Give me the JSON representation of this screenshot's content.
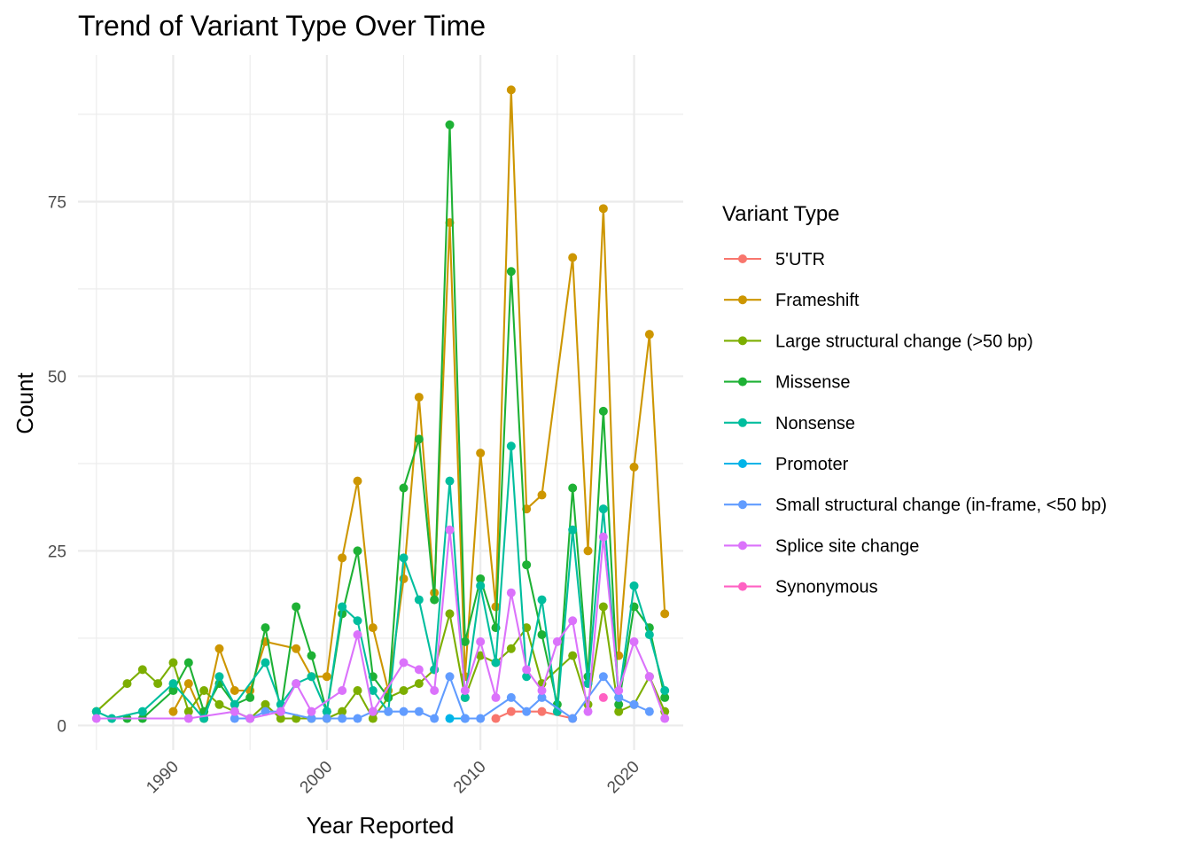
{
  "chart_data": {
    "type": "line",
    "title": "Trend of Variant Type Over Time",
    "xlabel": "Year Reported",
    "ylabel": "Count",
    "xlim": [
      1983.8,
      2023.2
    ],
    "ylim": [
      -3.5,
      96
    ],
    "x_ticks": [
      1990,
      2000,
      2010,
      2020
    ],
    "y_ticks": [
      0,
      25,
      50,
      75
    ],
    "grid": true,
    "legend_title": "Variant Type",
    "legend_position": "right",
    "series": [
      {
        "name": "5'UTR",
        "color": "#F8766D",
        "points": [
          [
            2011,
            1
          ],
          [
            2012,
            2
          ],
          [
            2014,
            2
          ],
          [
            2016,
            1
          ]
        ]
      },
      {
        "name": "Frameshift",
        "color": "#CD9600",
        "points": [
          [
            1990,
            2
          ],
          [
            1991,
            6
          ],
          [
            1992,
            1
          ],
          [
            1993,
            11
          ],
          [
            1994,
            5
          ],
          [
            1995,
            5
          ],
          [
            1996,
            12
          ],
          [
            1998,
            11
          ],
          [
            1999,
            7
          ],
          [
            2000,
            7
          ],
          [
            2001,
            24
          ],
          [
            2002,
            35
          ],
          [
            2003,
            14
          ],
          [
            2004,
            5
          ],
          [
            2005,
            21
          ],
          [
            2006,
            47
          ],
          [
            2007,
            19
          ],
          [
            2008,
            72
          ],
          [
            2009,
            7
          ],
          [
            2010,
            39
          ],
          [
            2011,
            17
          ],
          [
            2012,
            91
          ],
          [
            2013,
            31
          ],
          [
            2014,
            33
          ],
          [
            2016,
            67
          ],
          [
            2017,
            25
          ],
          [
            2018,
            74
          ],
          [
            2019,
            10
          ],
          [
            2020,
            37
          ],
          [
            2021,
            56
          ],
          [
            2022,
            16
          ]
        ]
      },
      {
        "name": "Large structural change (>50 bp)",
        "color": "#7CAE00",
        "points": [
          [
            1985,
            2
          ],
          [
            1987,
            6
          ],
          [
            1988,
            8
          ],
          [
            1989,
            6
          ],
          [
            1990,
            9
          ],
          [
            1991,
            2
          ],
          [
            1992,
            5
          ],
          [
            1993,
            3
          ],
          [
            1994,
            2
          ],
          [
            1995,
            1
          ],
          [
            1996,
            3
          ],
          [
            1997,
            1
          ],
          [
            1998,
            1
          ],
          [
            1999,
            1
          ],
          [
            2000,
            1
          ],
          [
            2001,
            2
          ],
          [
            2002,
            5
          ],
          [
            2003,
            1
          ],
          [
            2004,
            4
          ],
          [
            2005,
            5
          ],
          [
            2006,
            6
          ],
          [
            2007,
            8
          ],
          [
            2008,
            16
          ],
          [
            2009,
            4
          ],
          [
            2010,
            10
          ],
          [
            2011,
            9
          ],
          [
            2012,
            11
          ],
          [
            2013,
            14
          ],
          [
            2014,
            6
          ],
          [
            2016,
            10
          ],
          [
            2017,
            3
          ],
          [
            2018,
            17
          ],
          [
            2019,
            2
          ],
          [
            2020,
            3
          ],
          [
            2021,
            7
          ],
          [
            2022,
            2
          ]
        ]
      },
      {
        "name": "Missense",
        "color": "#00A9FF",
        "line_color": "#1EB135",
        "points": [
          [
            1987,
            1
          ],
          [
            1988,
            1
          ],
          [
            1990,
            5
          ],
          [
            1991,
            9
          ],
          [
            1992,
            2
          ],
          [
            1993,
            6
          ],
          [
            1994,
            3
          ],
          [
            1995,
            4
          ],
          [
            1996,
            14
          ],
          [
            1997,
            2
          ],
          [
            1998,
            17
          ],
          [
            1999,
            10
          ],
          [
            2000,
            2
          ],
          [
            2001,
            16
          ],
          [
            2002,
            25
          ],
          [
            2003,
            7
          ],
          [
            2004,
            4
          ],
          [
            2005,
            34
          ],
          [
            2006,
            41
          ],
          [
            2007,
            18
          ],
          [
            2008,
            86
          ],
          [
            2009,
            12
          ],
          [
            2010,
            21
          ],
          [
            2011,
            14
          ],
          [
            2012,
            65
          ],
          [
            2013,
            23
          ],
          [
            2014,
            13
          ],
          [
            2015,
            3
          ],
          [
            2016,
            34
          ],
          [
            2017,
            7
          ],
          [
            2018,
            45
          ],
          [
            2019,
            3
          ],
          [
            2020,
            17
          ],
          [
            2021,
            14
          ],
          [
            2022,
            4
          ]
        ]
      },
      {
        "name": "Nonsense",
        "color": "#00BE9E",
        "points": [
          [
            1985,
            2
          ],
          [
            1986,
            1
          ],
          [
            1988,
            2
          ],
          [
            1990,
            6
          ],
          [
            1992,
            1
          ],
          [
            1993,
            7
          ],
          [
            1994,
            3
          ],
          [
            1996,
            9
          ],
          [
            1997,
            3
          ],
          [
            1998,
            6
          ],
          [
            1999,
            7
          ],
          [
            2000,
            2
          ],
          [
            2001,
            17
          ],
          [
            2002,
            15
          ],
          [
            2003,
            5
          ],
          [
            2004,
            2
          ],
          [
            2005,
            24
          ],
          [
            2006,
            18
          ],
          [
            2007,
            8
          ],
          [
            2008,
            35
          ],
          [
            2009,
            4
          ],
          [
            2010,
            20
          ],
          [
            2011,
            9
          ],
          [
            2012,
            40
          ],
          [
            2013,
            7
          ],
          [
            2014,
            18
          ],
          [
            2015,
            2
          ],
          [
            2016,
            28
          ],
          [
            2017,
            6
          ],
          [
            2018,
            31
          ],
          [
            2019,
            4
          ],
          [
            2020,
            20
          ],
          [
            2021,
            13
          ],
          [
            2022,
            5
          ]
        ]
      },
      {
        "name": "Promoter",
        "color": "#00B4E8",
        "points": [
          [
            2008,
            1
          ],
          [
            2009,
            1
          ]
        ]
      },
      {
        "name": "Small structural change (in-frame, <50 bp)",
        "color": "#619CFF",
        "points": [
          [
            1994,
            1
          ],
          [
            1995,
            1
          ],
          [
            1996,
            2
          ],
          [
            1997,
            2
          ],
          [
            1999,
            1
          ],
          [
            2000,
            1
          ],
          [
            2001,
            1
          ],
          [
            2002,
            1
          ],
          [
            2003,
            2
          ],
          [
            2004,
            2
          ],
          [
            2005,
            2
          ],
          [
            2006,
            2
          ],
          [
            2007,
            1
          ],
          [
            2008,
            7
          ],
          [
            2009,
            1
          ],
          [
            2010,
            1
          ],
          [
            2012,
            4
          ],
          [
            2013,
            2
          ],
          [
            2014,
            4
          ],
          [
            2016,
            1
          ],
          [
            2018,
            7
          ],
          [
            2019,
            4
          ],
          [
            2020,
            3
          ],
          [
            2021,
            2
          ]
        ]
      },
      {
        "name": "Splice site change",
        "color": "#DB72FB",
        "points": [
          [
            1985,
            1
          ],
          [
            1991,
            1
          ],
          [
            1994,
            2
          ],
          [
            1995,
            1
          ],
          [
            1997,
            2
          ],
          [
            1998,
            6
          ],
          [
            1999,
            2
          ],
          [
            2001,
            5
          ],
          [
            2002,
            13
          ],
          [
            2003,
            2
          ],
          [
            2005,
            9
          ],
          [
            2006,
            8
          ],
          [
            2007,
            5
          ],
          [
            2008,
            28
          ],
          [
            2009,
            5
          ],
          [
            2010,
            12
          ],
          [
            2011,
            4
          ],
          [
            2012,
            19
          ],
          [
            2013,
            8
          ],
          [
            2014,
            5
          ],
          [
            2015,
            12
          ],
          [
            2016,
            15
          ],
          [
            2017,
            2
          ],
          [
            2018,
            27
          ],
          [
            2019,
            5
          ],
          [
            2020,
            12
          ],
          [
            2021,
            7
          ],
          [
            2022,
            1
          ]
        ]
      },
      {
        "name": "Synonymous",
        "color": "#FF61C3",
        "points": [
          [
            2018,
            4
          ]
        ]
      }
    ]
  }
}
